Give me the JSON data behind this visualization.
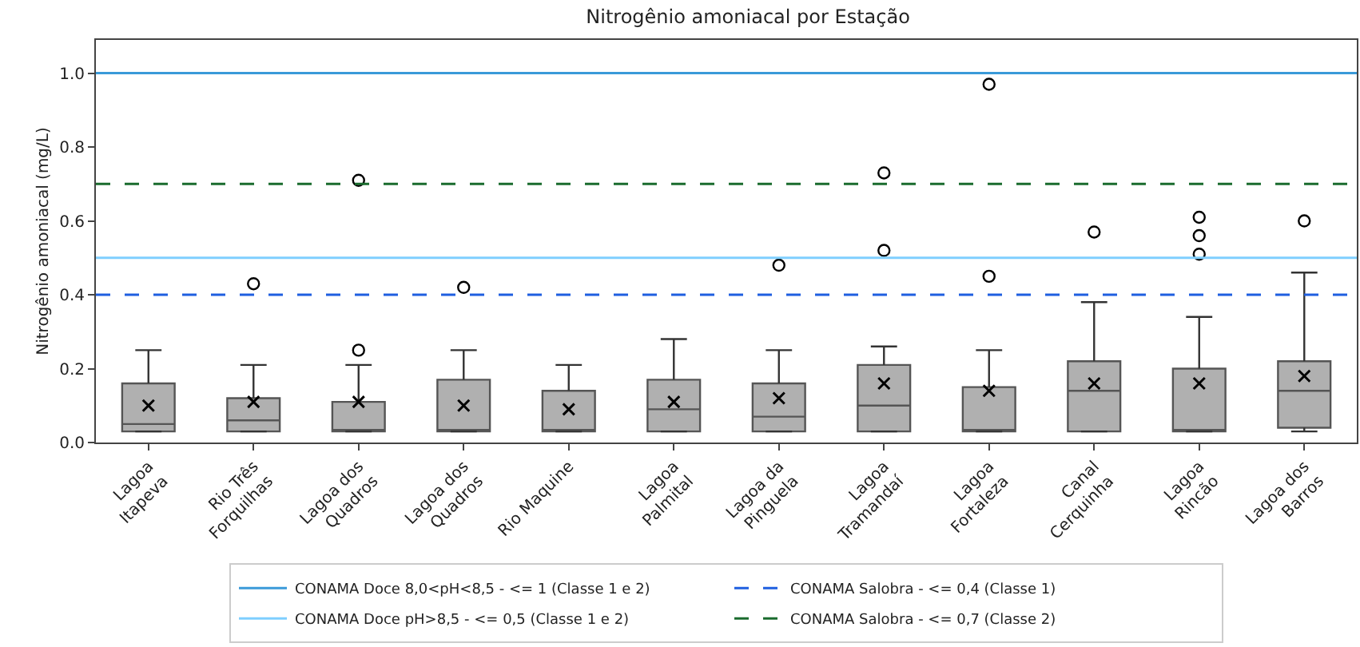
{
  "chart_data": {
    "type": "box",
    "title": "Nitrogênio amoniacal por Estação",
    "ylabel": "Nitrogênio amoniacal (mg/L)",
    "categories": [
      "Lagoa\nItapeva",
      "Rio Três\nForquilhas",
      "Lagoa dos\nQuadros",
      "Lagoa dos\nQuadros",
      "Rio Maquine",
      "Lagoa\nPalmital",
      "Lagoa da\nPinguela",
      "Lagoa\nTramandaí",
      "Lagoa\nFortaleza",
      "Canal\nCerquinha",
      "Lagoa\nRincão",
      "Lagoa dos\nBarros"
    ],
    "color": "#b0b0b0",
    "boxes": [
      {
        "low": 0.03,
        "q1": 0.03,
        "median": 0.05,
        "q3": 0.16,
        "high": 0.25,
        "mean": 0.1
      },
      {
        "low": 0.03,
        "q1": 0.03,
        "median": 0.06,
        "q3": 0.12,
        "high": 0.21,
        "mean": 0.11,
        "outliers": [
          0.43
        ]
      },
      {
        "low": 0.03,
        "q1": 0.03,
        "median": 0.03,
        "q3": 0.11,
        "high": 0.21,
        "mean": 0.11,
        "outliers": [
          0.25,
          0.71
        ]
      },
      {
        "low": 0.03,
        "q1": 0.03,
        "median": 0.03,
        "q3": 0.17,
        "high": 0.25,
        "mean": 0.1,
        "outliers": [
          0.42
        ]
      },
      {
        "low": 0.03,
        "q1": 0.03,
        "median": 0.03,
        "q3": 0.14,
        "high": 0.21,
        "mean": 0.09
      },
      {
        "low": 0.03,
        "q1": 0.03,
        "median": 0.09,
        "q3": 0.17,
        "high": 0.28,
        "mean": 0.11
      },
      {
        "low": 0.03,
        "q1": 0.03,
        "median": 0.07,
        "q3": 0.16,
        "high": 0.25,
        "mean": 0.12,
        "outliers": [
          0.48
        ]
      },
      {
        "low": 0.03,
        "q1": 0.03,
        "median": 0.1,
        "q3": 0.21,
        "high": 0.26,
        "mean": 0.16,
        "outliers": [
          0.52,
          0.73
        ]
      },
      {
        "low": 0.03,
        "q1": 0.03,
        "median": 0.03,
        "q3": 0.15,
        "high": 0.25,
        "mean": 0.14,
        "outliers": [
          0.45,
          0.97
        ]
      },
      {
        "low": 0.03,
        "q1": 0.03,
        "median": 0.14,
        "q3": 0.22,
        "high": 0.38,
        "mean": 0.16,
        "outliers": [
          0.57
        ]
      },
      {
        "low": 0.03,
        "q1": 0.03,
        "median": 0.03,
        "q3": 0.2,
        "high": 0.34,
        "mean": 0.16,
        "outliers": [
          0.51,
          0.56,
          0.61
        ]
      },
      {
        "low": 0.03,
        "q1": 0.04,
        "median": 0.14,
        "q3": 0.22,
        "high": 0.46,
        "mean": 0.18,
        "outliers": [
          0.6
        ]
      }
    ],
    "ylim": [
      0,
      1.09
    ],
    "yticks": [
      {
        "value": 0,
        "label": "0.0"
      },
      {
        "value": 0.2,
        "label": "0.2"
      },
      {
        "value": 0.4,
        "label": "0.4"
      },
      {
        "value": 0.6,
        "label": "0.6"
      },
      {
        "value": 0.8,
        "label": "0.8"
      },
      {
        "value": 1,
        "label": "1.0"
      }
    ],
    "ref_lines": [
      {
        "axis": "y",
        "value": 1,
        "label": "CONAMA Doce 8,0<pH<8,5 - <= 1 (Classe 1 e 2)",
        "color": "#3a9ad9",
        "line_style": "solid"
      },
      {
        "axis": "y",
        "value": 0.4,
        "label": "CONAMA Salobra - <= 0,4 (Classe 1)",
        "color": "#1f5fe0",
        "line_style": "dashed"
      },
      {
        "axis": "y",
        "value": 0.5,
        "label": "CONAMA Doce pH>8,5 - <= 0,5 (Classe 1 e 2)",
        "color": "#7fcfff",
        "line_style": "solid"
      },
      {
        "axis": "y",
        "value": 0.7,
        "label": "CONAMA Salobra - <= 0,7 (Classe 2)",
        "color": "#1a6b2e",
        "line_style": "dashed"
      }
    ],
    "legend": "bottom",
    "grid": false
  }
}
